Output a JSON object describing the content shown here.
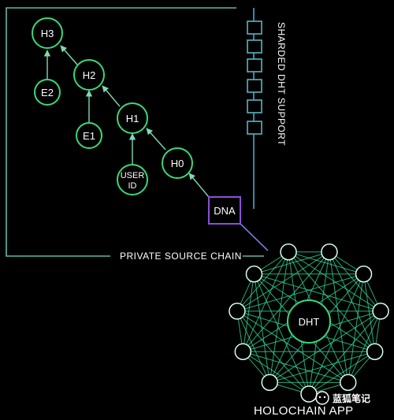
{
  "nodes": {
    "h3": "H3",
    "h2": "H2",
    "h1": "H1",
    "h0": "H0",
    "e2": "E2",
    "e1": "E1",
    "user_id_line1": "USER",
    "user_id_line2": "ID",
    "dna": "DNA",
    "dht": "DHT"
  },
  "labels": {
    "sharded_dht_support": "SHARDED DHT SUPPORT",
    "private_source_chain": "PRIVATE SOURCE CHAIN",
    "app_title": "HOLOCHAIN APP",
    "watermark": "蓝狐笔记"
  },
  "colors": {
    "background": "#000000",
    "chain_green": "#38d97a",
    "private_chain_line": "#5fb8a8",
    "sharded_box": "#4aa8c8",
    "dna_purple": "#8a4fd8",
    "dht_mesh": "#2ee6a0"
  }
}
